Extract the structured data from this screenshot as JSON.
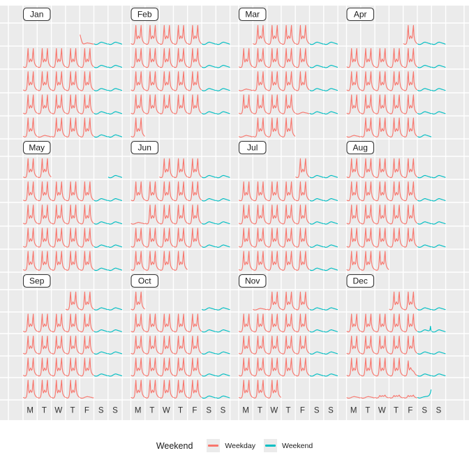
{
  "chart_data": {
    "type": "line",
    "subtype": "calendar-facet",
    "x_axis": {
      "day_labels": [
        "M",
        "T",
        "W",
        "T",
        "F",
        "S",
        "S"
      ]
    },
    "y_axis": {
      "range": [
        0,
        1
      ],
      "gridlines": true,
      "tick_labels": []
    },
    "series_colors": {
      "weekday": "#F8766D",
      "weekend": "#00BFC4"
    },
    "profile_series": {
      "wd": "weekday",
      "hol": "weekday",
      "nyd": "weekday",
      "hol_bump": "weekday",
      "wd_decay": "weekday",
      "we": "weekend",
      "we_spike": "weekend",
      "nye": "weekend"
    },
    "day_profiles": {
      "wd": [
        0.05,
        0.03,
        0.02,
        0.02,
        0.03,
        0.08,
        0.22,
        0.62,
        1.0,
        0.44,
        0.3,
        0.36,
        0.46,
        0.4,
        0.33,
        0.38,
        0.72,
        1.0,
        0.48,
        0.26,
        0.18,
        0.13,
        0.09,
        0.06
      ],
      "we": [
        0.04,
        0.02,
        0.01,
        0.01,
        0.01,
        0.02,
        0.03,
        0.05,
        0.07,
        0.09,
        0.11,
        0.12,
        0.13,
        0.13,
        0.12,
        0.11,
        0.1,
        0.09,
        0.08,
        0.07,
        0.06,
        0.05,
        0.04,
        0.03
      ],
      "hol": [
        0.04,
        0.02,
        0.01,
        0.01,
        0.01,
        0.02,
        0.03,
        0.04,
        0.06,
        0.07,
        0.08,
        0.09,
        0.1,
        0.1,
        0.09,
        0.08,
        0.08,
        0.07,
        0.06,
        0.06,
        0.05,
        0.04,
        0.03,
        0.03
      ],
      "nyd": [
        0.5,
        0.38,
        0.26,
        0.16,
        0.09,
        0.05,
        0.04,
        0.04,
        0.05,
        0.06,
        0.07,
        0.08,
        0.09,
        0.09,
        0.08,
        0.08,
        0.07,
        0.07,
        0.06,
        0.05,
        0.05,
        0.04,
        0.04,
        0.03
      ],
      "nye": [
        0.05,
        0.03,
        0.02,
        0.02,
        0.02,
        0.03,
        0.04,
        0.05,
        0.06,
        0.07,
        0.08,
        0.09,
        0.09,
        0.1,
        0.1,
        0.11,
        0.11,
        0.12,
        0.13,
        0.15,
        0.18,
        0.24,
        0.33,
        0.47
      ],
      "hol_bump": [
        0.05,
        0.03,
        0.02,
        0.02,
        0.03,
        0.04,
        0.07,
        0.12,
        0.16,
        0.12,
        0.1,
        0.12,
        0.15,
        0.13,
        0.11,
        0.12,
        0.16,
        0.18,
        0.12,
        0.08,
        0.06,
        0.05,
        0.04,
        0.03
      ],
      "wd_decay": [
        0.05,
        0.03,
        0.02,
        0.02,
        0.03,
        0.07,
        0.2,
        0.55,
        0.85,
        0.45,
        0.35,
        0.4,
        0.48,
        0.42,
        0.36,
        0.32,
        0.3,
        0.28,
        0.24,
        0.18,
        0.13,
        0.09,
        0.07,
        0.05
      ],
      "we_spike": [
        0.04,
        0.02,
        0.01,
        0.01,
        0.01,
        0.02,
        0.03,
        0.05,
        0.07,
        0.09,
        0.11,
        0.12,
        0.13,
        0.13,
        0.12,
        0.11,
        0.1,
        0.09,
        0.08,
        0.08,
        0.09,
        0.13,
        0.33,
        0.08
      ]
    },
    "facet_months": [
      {
        "label": "Jan",
        "weeks": [
          [
            null,
            null,
            null,
            null,
            "nyd",
            "we",
            "we"
          ],
          [
            "wd",
            "wd",
            "wd",
            "wd",
            "wd",
            "we",
            "we"
          ],
          [
            "wd",
            "wd",
            "wd",
            "wd",
            "wd",
            "we",
            "we"
          ],
          [
            "wd",
            "wd",
            "wd",
            "wd",
            "wd",
            "we",
            "we"
          ],
          [
            "wd",
            "hol",
            "wd",
            "wd",
            "wd",
            "we",
            "we"
          ]
        ]
      },
      {
        "label": "Feb",
        "weeks": [
          [
            "wd",
            "wd",
            "wd",
            "wd",
            "wd",
            "we",
            "we"
          ],
          [
            "wd",
            "wd",
            "wd",
            "wd",
            "wd",
            "we",
            "we"
          ],
          [
            "wd",
            "wd",
            "wd",
            "wd",
            "wd",
            "we",
            "we"
          ],
          [
            "wd",
            "wd",
            "wd",
            "wd",
            "wd",
            "we",
            "we"
          ],
          [
            "wd",
            null,
            null,
            null,
            null,
            null,
            null
          ]
        ]
      },
      {
        "label": "Mar",
        "weeks": [
          [
            null,
            "wd",
            "wd",
            "wd",
            "wd",
            "we",
            "we"
          ],
          [
            "wd",
            "wd",
            "wd",
            "wd",
            "wd",
            "we",
            "we"
          ],
          [
            "hol",
            "wd",
            "wd",
            "wd",
            "wd",
            "we",
            "we"
          ],
          [
            "wd",
            "wd",
            "wd",
            "wd",
            "hol",
            "we",
            "we"
          ],
          [
            "hol",
            "wd",
            "wd",
            "wd",
            null,
            null,
            null
          ]
        ]
      },
      {
        "label": "Apr",
        "weeks": [
          [
            null,
            null,
            null,
            null,
            "wd",
            "we",
            "we"
          ],
          [
            "wd",
            "wd",
            "wd",
            "wd",
            "wd",
            "we",
            "we"
          ],
          [
            "wd",
            "wd",
            "wd",
            "wd",
            "wd",
            "we",
            "we"
          ],
          [
            "wd",
            "wd",
            "wd",
            "wd",
            "wd",
            "we",
            "we"
          ],
          [
            "hol",
            "wd",
            "wd",
            "wd",
            "wd",
            "we",
            null
          ]
        ]
      },
      {
        "label": "May",
        "weeks": [
          [
            "wd",
            "wd",
            null,
            null,
            null,
            null,
            "we"
          ],
          [
            "wd",
            "wd",
            "wd",
            "wd",
            "wd",
            "we",
            "we"
          ],
          [
            "wd",
            "wd",
            "wd",
            "wd",
            "wd",
            "we",
            "we"
          ],
          [
            "wd",
            "wd",
            "wd",
            "wd",
            "wd",
            "we",
            "we"
          ],
          [
            "wd",
            "wd",
            "wd",
            "wd",
            "wd",
            "we",
            "we"
          ]
        ]
      },
      {
        "label": "Jun",
        "weeks": [
          [
            null,
            null,
            "wd",
            "wd",
            "wd",
            "we",
            "we"
          ],
          [
            "wd",
            "wd",
            "wd",
            "wd",
            "wd",
            "we",
            "we"
          ],
          [
            "hol",
            "wd",
            "wd",
            "wd",
            "wd",
            "we",
            "we"
          ],
          [
            "wd",
            "wd",
            "wd",
            "wd",
            "wd",
            "we",
            "we"
          ],
          [
            "wd",
            "wd",
            "wd",
            "wd",
            null,
            null,
            null
          ]
        ]
      },
      {
        "label": "Jul",
        "weeks": [
          [
            null,
            null,
            null,
            null,
            "wd",
            "we",
            "we"
          ],
          [
            "wd",
            "wd",
            "wd",
            "wd",
            "wd",
            "we",
            "we"
          ],
          [
            "wd",
            "wd",
            "wd",
            "wd",
            "wd",
            "we",
            "we"
          ],
          [
            "wd",
            "wd",
            "wd",
            "wd",
            "wd",
            "we",
            "we"
          ],
          [
            "wd",
            "wd",
            "wd",
            "wd",
            "wd",
            "we",
            "we"
          ]
        ]
      },
      {
        "label": "Aug",
        "weeks": [
          [
            "wd",
            "wd",
            "wd",
            "wd",
            "wd",
            "we",
            "we"
          ],
          [
            "wd",
            "wd",
            "wd",
            "wd",
            "wd",
            "we",
            "we"
          ],
          [
            "wd",
            "wd",
            "wd",
            "wd",
            "wd",
            "we",
            "we"
          ],
          [
            "wd",
            "wd",
            "wd",
            "wd",
            "wd",
            "we",
            "we"
          ],
          [
            "wd",
            "wd",
            "wd",
            null,
            null,
            null,
            null
          ]
        ]
      },
      {
        "label": "Sep",
        "weeks": [
          [
            null,
            null,
            null,
            "wd",
            "wd",
            "we",
            "we"
          ],
          [
            "wd",
            "wd",
            "wd",
            "wd",
            "wd",
            "we",
            "we"
          ],
          [
            "wd",
            "wd",
            "wd",
            "wd",
            "wd",
            "we",
            "we"
          ],
          [
            "wd",
            "wd",
            "wd",
            "wd",
            "wd",
            "we",
            "we"
          ],
          [
            "wd",
            "wd",
            "wd",
            "wd",
            "hol",
            null,
            null
          ]
        ]
      },
      {
        "label": "Oct",
        "weeks": [
          [
            "wd",
            null,
            null,
            null,
            null,
            "we",
            "we"
          ],
          [
            "wd",
            "wd",
            "wd",
            "wd",
            "wd",
            "we",
            "we"
          ],
          [
            "wd",
            "wd",
            "wd",
            "wd",
            "wd",
            "we",
            "we"
          ],
          [
            "wd",
            "wd",
            "wd",
            "wd",
            "wd",
            "we",
            "we"
          ],
          [
            "wd",
            "wd",
            "wd",
            "wd",
            "wd",
            "we",
            "we"
          ]
        ]
      },
      {
        "label": "Nov",
        "weeks": [
          [
            null,
            "hol",
            "wd",
            "wd",
            "wd",
            "we",
            "we"
          ],
          [
            "wd",
            "wd",
            "wd",
            "wd",
            "wd",
            "we",
            "we"
          ],
          [
            "wd",
            "wd",
            "wd",
            "wd",
            "wd",
            "we",
            "we"
          ],
          [
            "wd",
            "wd",
            "wd",
            "wd",
            "wd",
            "we",
            "we"
          ],
          [
            "wd",
            "wd",
            "wd",
            null,
            null,
            null,
            null
          ]
        ]
      },
      {
        "label": "Dec",
        "weeks": [
          [
            null,
            null,
            null,
            "wd",
            "wd",
            "we",
            "we"
          ],
          [
            "wd",
            "wd",
            "wd",
            "wd",
            "wd",
            "we_spike",
            "we"
          ],
          [
            "wd",
            "wd",
            "wd",
            "wd",
            "wd",
            "we",
            "we"
          ],
          [
            "wd",
            "wd",
            "wd",
            "wd",
            "wd_decay",
            "we",
            "we"
          ],
          [
            "hol",
            "hol",
            "hol_bump",
            "hol_bump",
            "hol_bump",
            "nye",
            null
          ]
        ]
      }
    ]
  },
  "legend": {
    "title": "Weekend",
    "items": [
      {
        "label": "Weekday",
        "color": "#F8766D"
      },
      {
        "label": "Weekend",
        "color": "#00BFC4"
      }
    ]
  },
  "colors": {
    "panel_bg": "#EBEBEB",
    "grid": "#FFFFFF",
    "label_text": "#1A1A1A",
    "axis_text": "#303030",
    "month_box_border": "#333333",
    "month_box_fill": "#FFFFFF"
  }
}
